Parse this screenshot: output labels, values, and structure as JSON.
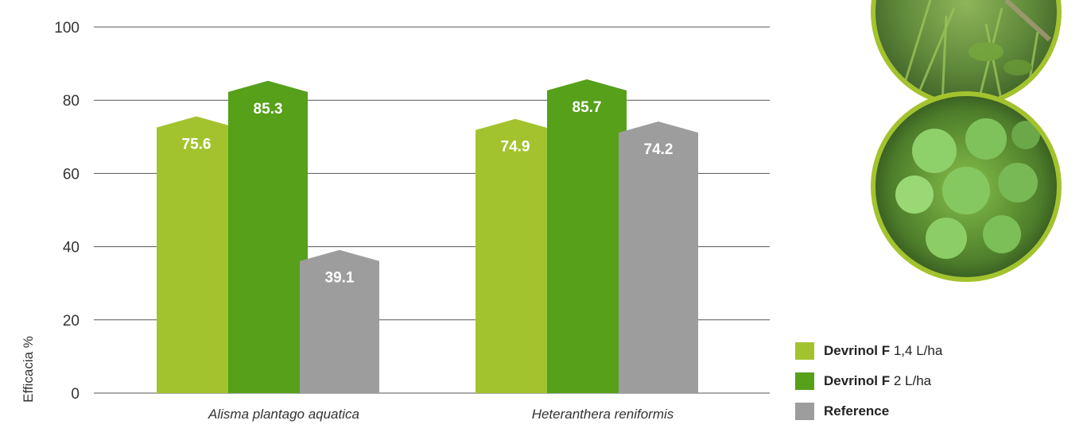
{
  "chart_data": {
    "type": "bar",
    "title": "",
    "xlabel": "",
    "ylabel": "Efficacia %",
    "ylim": [
      0,
      100
    ],
    "yticks": [
      0,
      20,
      40,
      60,
      80,
      100
    ],
    "grid": true,
    "legend_position": "bottom-right",
    "categories": [
      "Alisma plantago aquatica",
      "Heteranthera reniformis"
    ],
    "series": [
      {
        "name": "Devrinol F 1,4 L/ha",
        "color": "#a3c32e",
        "values": [
          75.6,
          74.9
        ]
      },
      {
        "name": "Devrinol F 2 L/ha",
        "color": "#56a01a",
        "values": [
          85.3,
          85.7
        ]
      },
      {
        "name": "Reference",
        "color": "#9d9d9d",
        "values": [
          39.1,
          74.2
        ]
      }
    ]
  },
  "legend": [
    {
      "bold": "Devrinol F",
      "rest": " 1,4 L/ha",
      "color": "#a3c32e"
    },
    {
      "bold": "Devrinol F",
      "rest": " 2 L/ha",
      "color": "#56a01a"
    },
    {
      "bold": "Reference",
      "rest": "",
      "color": "#9d9d9d"
    }
  ],
  "colors": {
    "grid": "#555555",
    "photo_ring": "#a3c32e"
  },
  "images": [
    "weed-photo-top",
    "weed-photo-bottom"
  ]
}
